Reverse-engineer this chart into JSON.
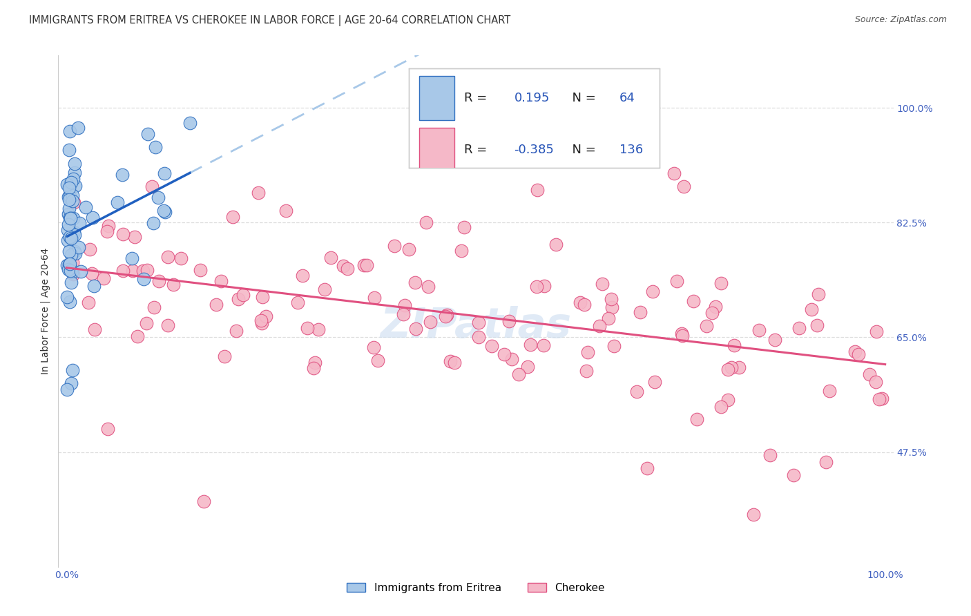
{
  "title": "IMMIGRANTS FROM ERITREA VS CHEROKEE IN LABOR FORCE | AGE 20-64 CORRELATION CHART",
  "source": "Source: ZipAtlas.com",
  "ylabel": "In Labor Force | Age 20-64",
  "x_tick_labels": [
    "0.0%",
    "100.0%"
  ],
  "y_tick_labels": [
    "47.5%",
    "65.0%",
    "82.5%",
    "100.0%"
  ],
  "y_tick_positions": [
    0.475,
    0.65,
    0.825,
    1.0
  ],
  "xlim": [
    -0.01,
    1.01
  ],
  "ylim": [
    0.3,
    1.08
  ],
  "r1": 0.195,
  "n1": 64,
  "r2": -0.385,
  "n2": 136,
  "color_eritrea_fill": "#a8c8e8",
  "color_eritrea_edge": "#3070c0",
  "color_cherokee_fill": "#f5b8c8",
  "color_cherokee_edge": "#e05080",
  "color_line_eritrea_solid": "#2060c0",
  "color_line_eritrea_dash": "#a8c8e8",
  "color_line_cherokee": "#e05080",
  "background_color": "#ffffff",
  "grid_color": "#dddddd",
  "spine_color": "#cccccc",
  "title_fontsize": 10.5,
  "source_fontsize": 9,
  "tick_fontsize": 10,
  "ylabel_fontsize": 10,
  "legend_fontsize": 13,
  "watermark_text": "ZIPatlas",
  "watermark_color": "#ccddf0",
  "bottom_legend_labels": [
    "Immigrants from Eritrea",
    "Cherokee"
  ]
}
